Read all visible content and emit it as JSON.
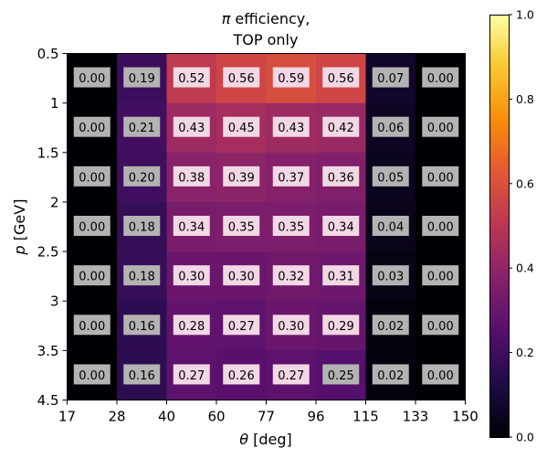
{
  "chart_data": {
    "type": "heatmap",
    "title": [
      "π efficiency,",
      "TOP only"
    ],
    "title_symbol": "π",
    "title_rest_line1": " efficiency,",
    "xlabel_symbol": "θ",
    "xlabel_rest": " [deg]",
    "ylabel_symbol": "p",
    "ylabel_rest": " [GeV]",
    "x_bin_edges": [
      "17",
      "28",
      "40",
      "60",
      "77",
      "96",
      "115",
      "133",
      "150"
    ],
    "y_bin_edges": [
      "0.5",
      "1",
      "1.5",
      "2",
      "2.5",
      "3",
      "3.5",
      "4.5"
    ],
    "values": [
      [
        0.0,
        0.19,
        0.52,
        0.56,
        0.59,
        0.56,
        0.07,
        0.0
      ],
      [
        0.0,
        0.21,
        0.43,
        0.45,
        0.43,
        0.42,
        0.06,
        0.0
      ],
      [
        0.0,
        0.2,
        0.38,
        0.39,
        0.37,
        0.36,
        0.05,
        0.0
      ],
      [
        0.0,
        0.18,
        0.34,
        0.35,
        0.35,
        0.34,
        0.04,
        0.0
      ],
      [
        0.0,
        0.18,
        0.3,
        0.3,
        0.32,
        0.31,
        0.03,
        0.0
      ],
      [
        0.0,
        0.16,
        0.28,
        0.27,
        0.3,
        0.29,
        0.02,
        0.0
      ],
      [
        0.0,
        0.16,
        0.27,
        0.26,
        0.27,
        0.25,
        0.02,
        0.0
      ]
    ],
    "colorbar": {
      "colormap": "inferno",
      "range": [
        0.0,
        1.0
      ],
      "ticks": [
        "0.0",
        "0.2",
        "0.4",
        "0.6",
        "0.8",
        "1.0"
      ]
    },
    "label_box_colors": {
      "low": "#b3b3b3",
      "high": "#f2d7e4"
    }
  }
}
